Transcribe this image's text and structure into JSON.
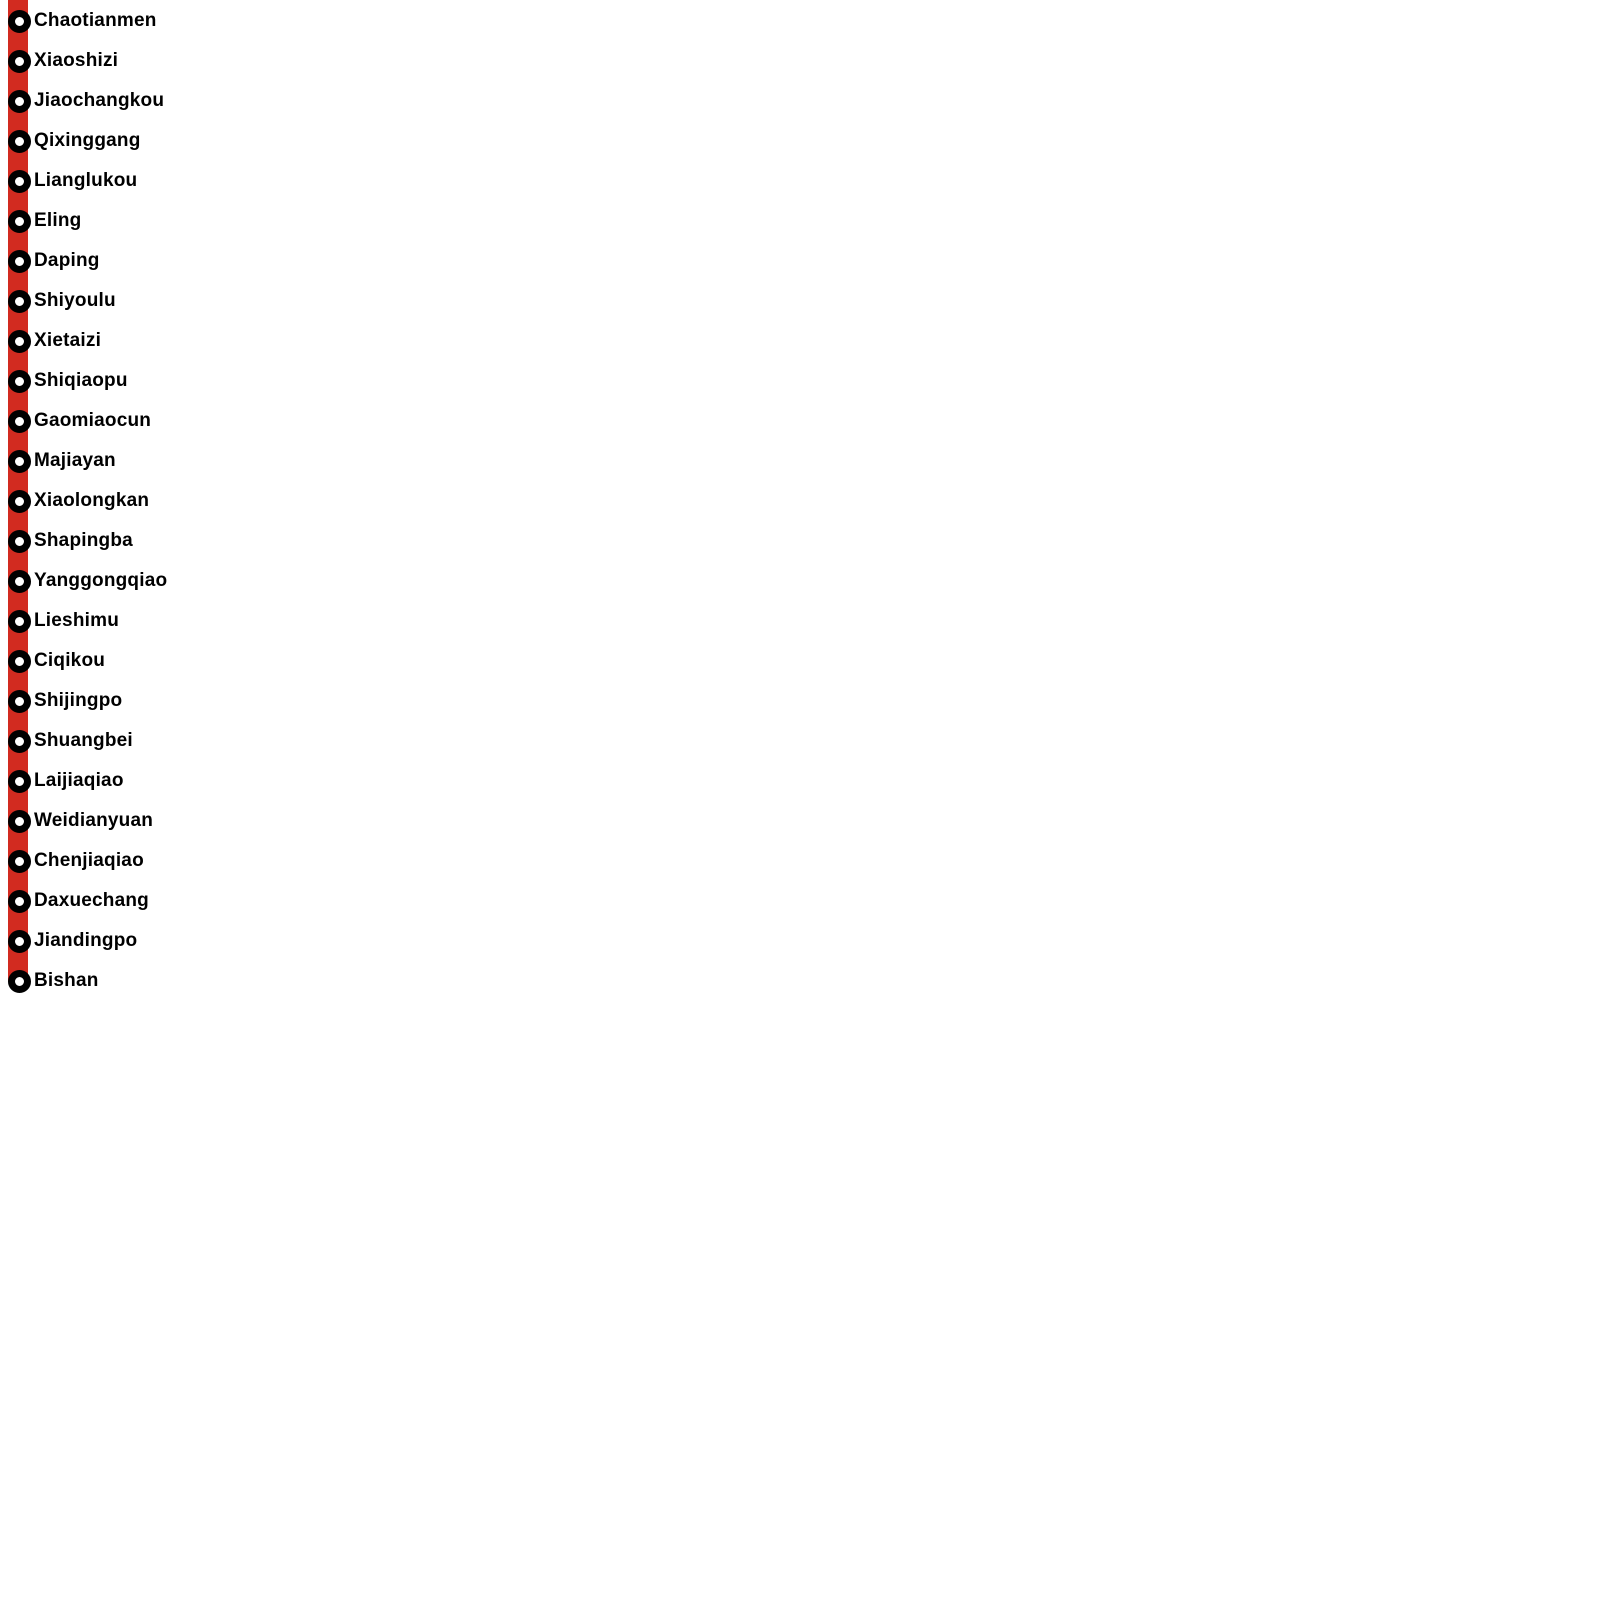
{
  "diagram": {
    "type": "transit-line",
    "line_color": "#D22B20",
    "marker_color": "#000000",
    "marker_fill": "#ffffff",
    "text_color": "#000000",
    "stations": [
      "Chaotianmen",
      "Xiaoshizi",
      "Jiaochangkou",
      "Qixinggang",
      "Lianglukou",
      "Eling",
      "Daping",
      "Shiyoulu",
      "Xietaizi",
      "Shiqiaopu",
      "Gaomiaocun",
      "Majiayan",
      "Xiaolongkan",
      "Shapingba",
      "Yanggongqiao",
      "Lieshimu",
      "Ciqikou",
      "Shijingpo",
      "Shuangbei",
      "Laijiaqiao",
      "Weidianyuan",
      "Chenjiaqiao",
      "Daxuechang",
      "Jiandingpo",
      "Bishan"
    ]
  }
}
